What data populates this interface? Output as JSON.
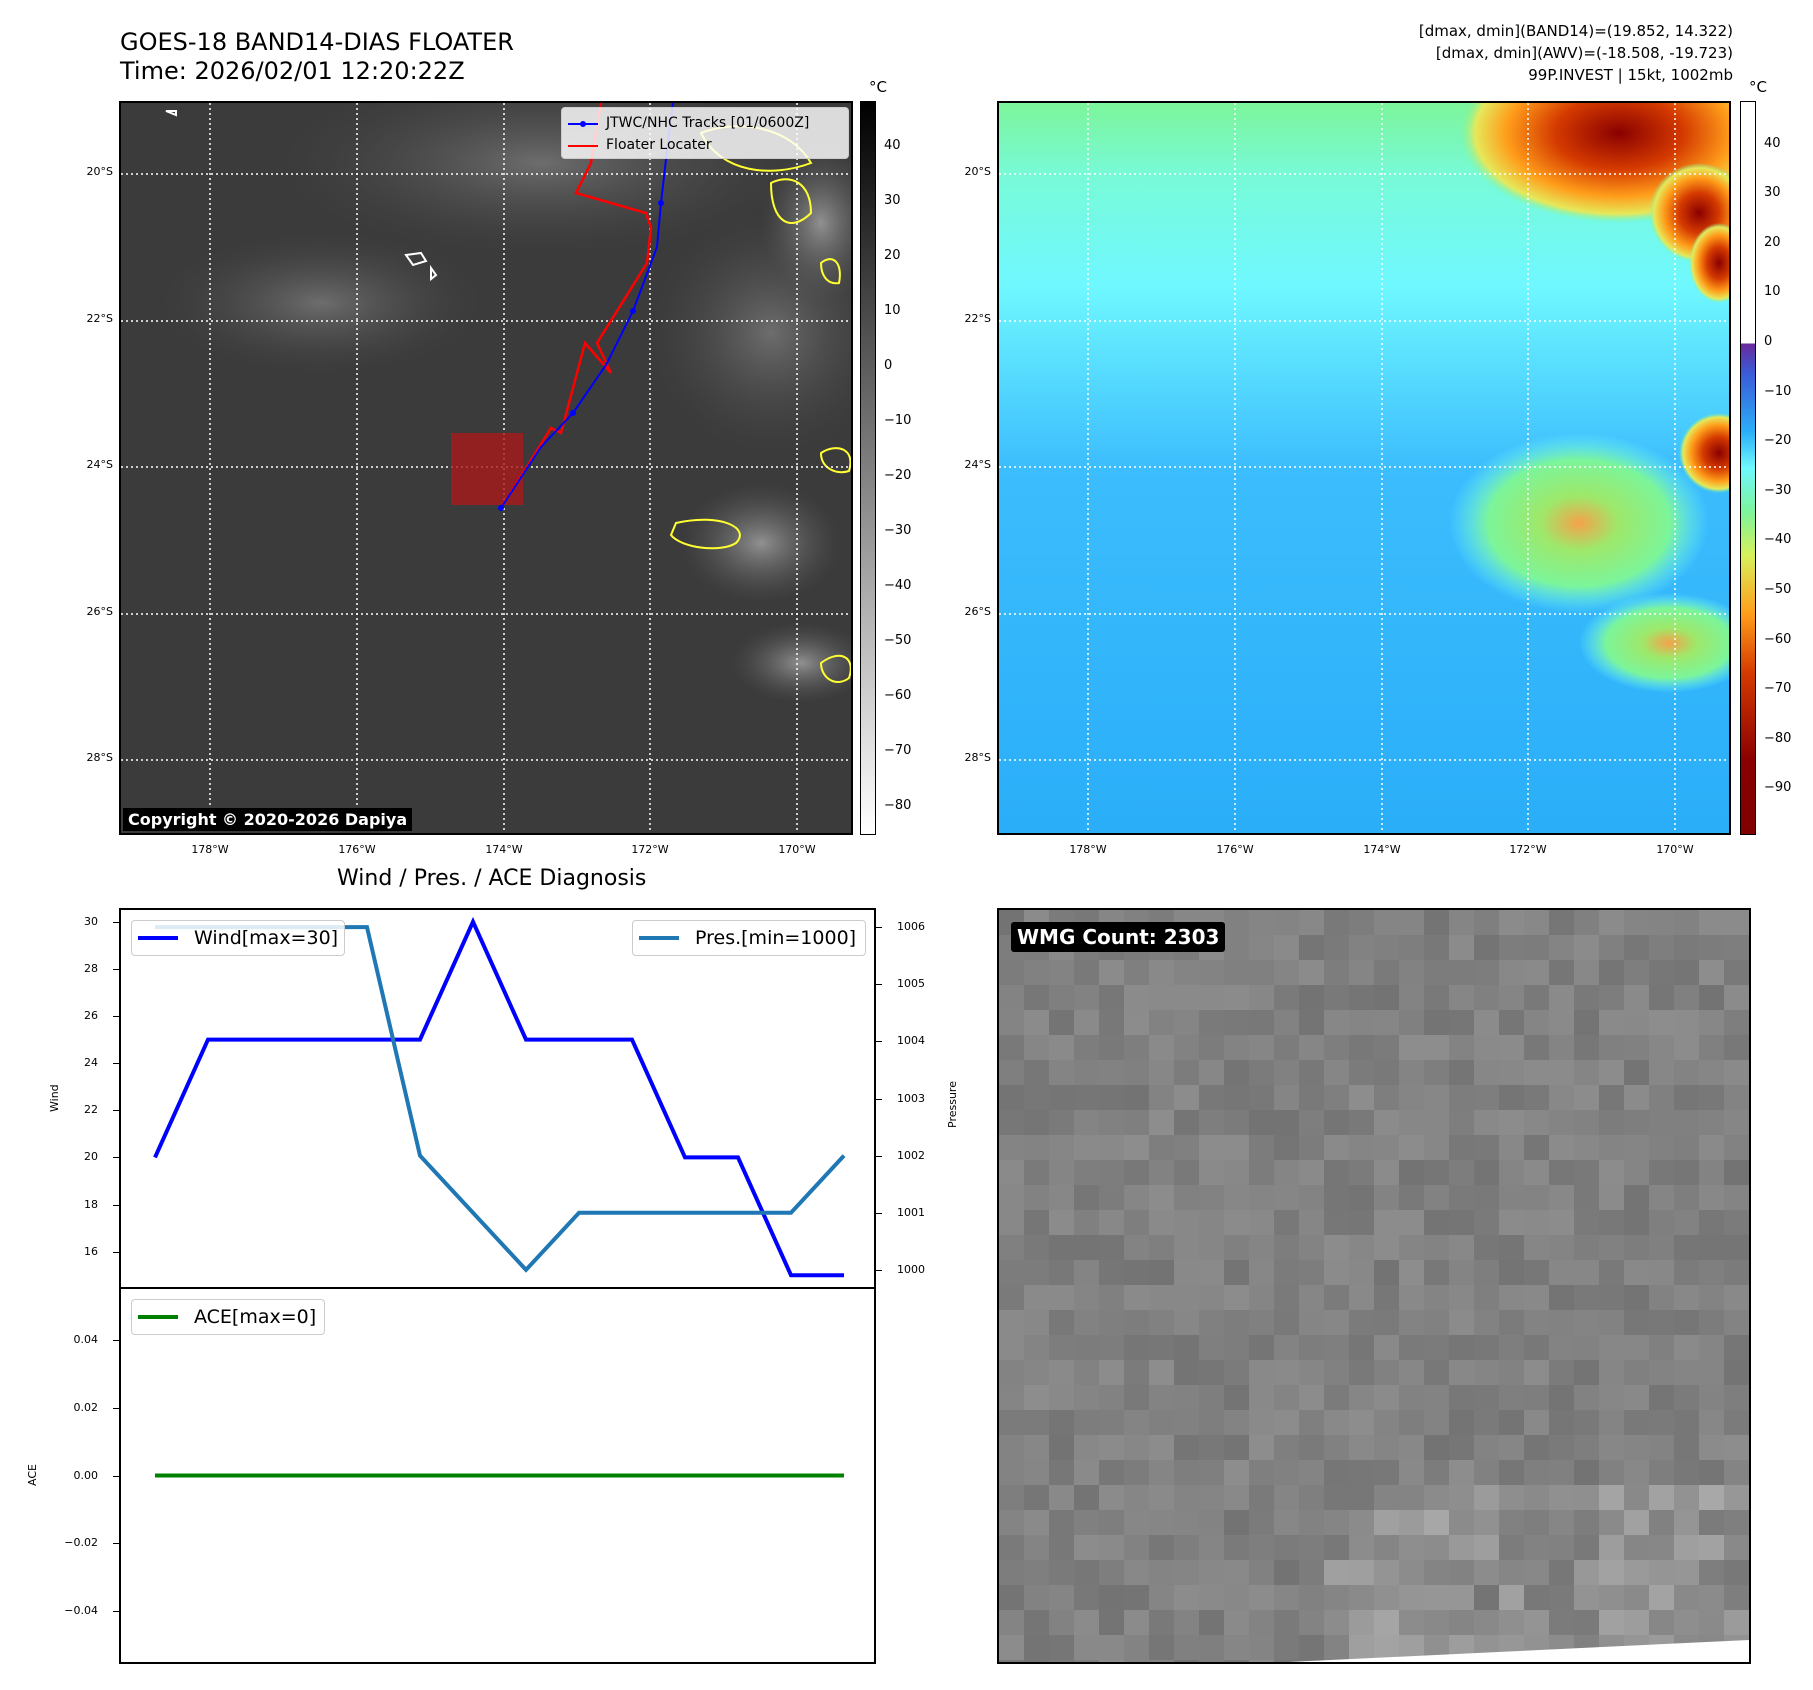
{
  "header": {
    "title_line1": "GOES-18 BAND14-DIAS FLOATER",
    "title_line2": "Time: 2026/02/01 12:20:22Z",
    "info_line1": "[dmax, dmin](BAND14)=(19.852, 14.322)",
    "info_line2": "[dmax, dmin](AWV)=(-18.508, -19.723)",
    "info_line3": "99P.INVEST | 15kt, 1002mb"
  },
  "map": {
    "lat_labels": [
      "20°S",
      "22°S",
      "24°S",
      "26°S",
      "28°S"
    ],
    "lon_labels": [
      "178°W",
      "176°W",
      "174°W",
      "172°W",
      "170°W"
    ],
    "legend_track": "JTWC/NHC Tracks [01/0600Z]",
    "legend_floater": "Floater Locater",
    "copyright": "Copyright © 2020-2026 Dapiya",
    "unit": "°C",
    "colorbar_left_ticks": [
      "40",
      "30",
      "20",
      "10",
      "0",
      "−10",
      "−20",
      "−30",
      "−40",
      "−50",
      "−60",
      "−70",
      "−80"
    ],
    "colorbar_right_ticks": [
      "40",
      "30",
      "20",
      "10",
      "0",
      "−10",
      "−20",
      "−30",
      "−40",
      "−50",
      "−60",
      "−70",
      "−80",
      "−90"
    ],
    "colors": {
      "track": "#0000ff",
      "floater": "#ff0000"
    }
  },
  "diagnosis": {
    "title": "Wind / Pres. / ACE Diagnosis",
    "wind_label": "Wind",
    "pressure_label": "Pressure",
    "ace_label": "ACE",
    "legend_wind": "Wind[max=30]",
    "legend_pres": "Pres.[min=1000]",
    "legend_ace": "ACE[max=0]",
    "wind_ticks": [
      "16",
      "18",
      "20",
      "22",
      "24",
      "26",
      "28",
      "30"
    ],
    "pres_ticks": [
      "1000",
      "1001",
      "1002",
      "1003",
      "1004",
      "1005",
      "1006"
    ],
    "ace_ticks": [
      "−0.04",
      "−0.02",
      "0.00",
      "0.02",
      "0.04"
    ]
  },
  "wmg": {
    "label": "WMG Count: 2303"
  },
  "chart_data": [
    {
      "type": "line",
      "title": "Wind / Pres. / ACE Diagnosis",
      "ylabel": "Wind",
      "y2label": "Pressure",
      "x": [
        0,
        1,
        2,
        3,
        4,
        5,
        6,
        7,
        8,
        9,
        10,
        11,
        12,
        13
      ],
      "ylim": [
        14.5,
        30.5
      ],
      "y2lim": [
        999.7,
        1006.3
      ],
      "series": [
        {
          "name": "Wind[max=30]",
          "axis": "left",
          "color": "#0000ff",
          "values": [
            20,
            25,
            25,
            25,
            25,
            25,
            30,
            25,
            25,
            25,
            20,
            20,
            15,
            15
          ]
        },
        {
          "name": "Pres.[min=1000]",
          "axis": "right",
          "color": "#1f77b4",
          "values": [
            1006,
            1006,
            1006,
            1006,
            1006,
            1002,
            1001,
            1000,
            1001,
            1001,
            1001,
            1001,
            1001,
            1002
          ]
        }
      ]
    },
    {
      "type": "line",
      "ylabel": "ACE",
      "ylim": [
        -0.055,
        0.055
      ],
      "x": [
        0,
        1,
        2,
        3,
        4,
        5,
        6,
        7,
        8,
        9,
        10,
        11,
        12,
        13
      ],
      "series": [
        {
          "name": "ACE[max=0]",
          "color": "#008000",
          "values": [
            0,
            0,
            0,
            0,
            0,
            0,
            0,
            0,
            0,
            0,
            0,
            0,
            0,
            0
          ]
        }
      ]
    }
  ]
}
